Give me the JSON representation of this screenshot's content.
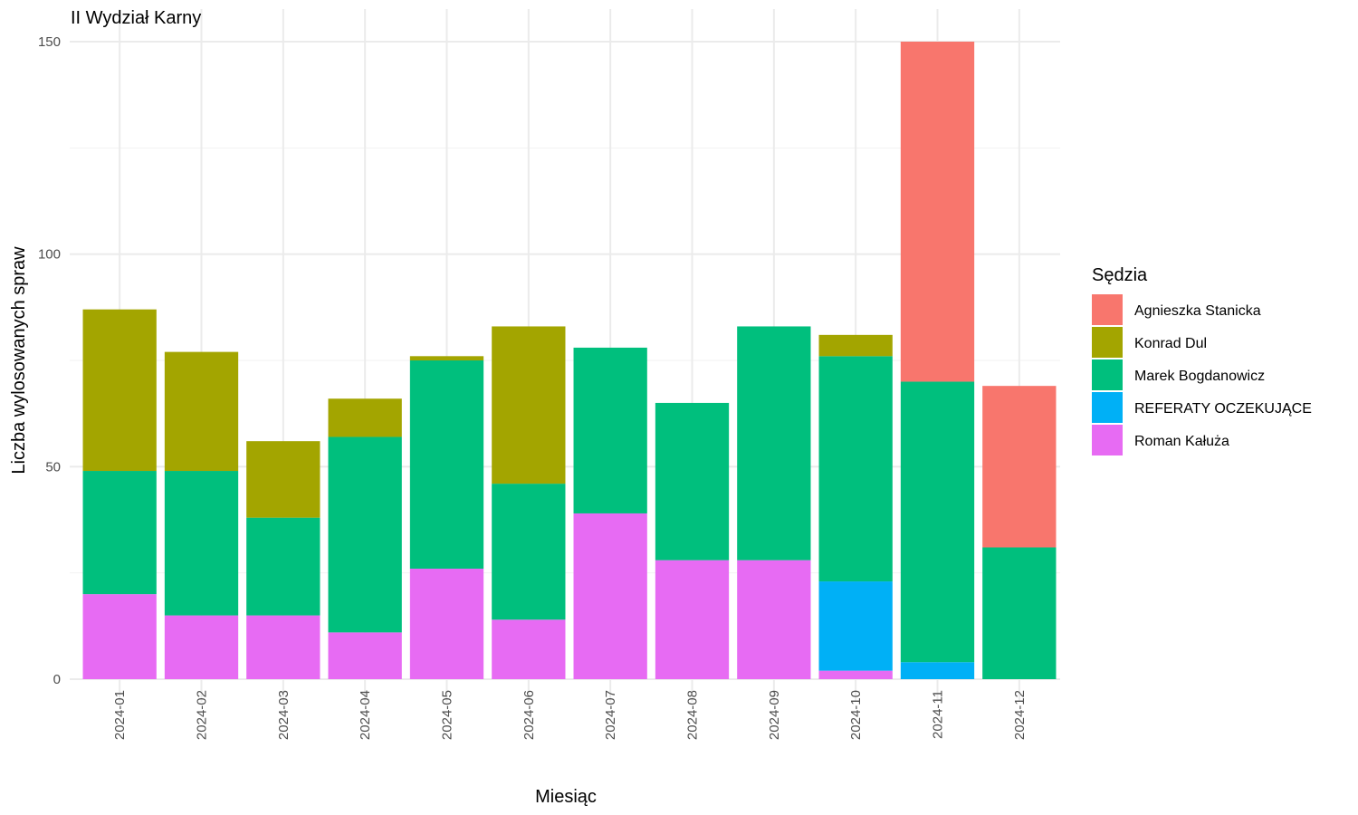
{
  "chart_data": {
    "type": "bar",
    "stacked": true,
    "title": "II Wydział Karny",
    "xlabel": "Miesiąc",
    "ylabel": "Liczba wylosowanych spraw",
    "ylim": [
      0,
      150
    ],
    "yticks": [
      0,
      50,
      100,
      150
    ],
    "grid": true,
    "legend_position": "right",
    "legend_title": "Sędzia",
    "categories": [
      "2024-01",
      "2024-02",
      "2024-03",
      "2024-04",
      "2024-05",
      "2024-06",
      "2024-07",
      "2024-08",
      "2024-09",
      "2024-10",
      "2024-11",
      "2024-12"
    ],
    "series": [
      {
        "name": "Agnieszka Stanicka",
        "color": "#F8766D",
        "values": [
          0,
          0,
          0,
          0,
          0,
          0,
          0,
          0,
          0,
          0,
          80,
          38
        ]
      },
      {
        "name": "Konrad Dul",
        "color": "#A3A500",
        "values": [
          38,
          28,
          18,
          9,
          1,
          37,
          0,
          0,
          0,
          5,
          0,
          0
        ]
      },
      {
        "name": "Marek Bogdanowicz",
        "color": "#00BF7D",
        "values": [
          29,
          34,
          23,
          46,
          49,
          32,
          39,
          37,
          55,
          53,
          66,
          31
        ]
      },
      {
        "name": "REFERATY OCZEKUJĄCE",
        "color": "#00B0F6",
        "values": [
          0,
          0,
          0,
          0,
          0,
          0,
          0,
          0,
          0,
          21,
          4,
          0
        ]
      },
      {
        "name": "Roman Kałuża",
        "color": "#E76BF3",
        "values": [
          20,
          15,
          15,
          11,
          26,
          14,
          39,
          28,
          28,
          2,
          0,
          0
        ]
      }
    ],
    "stack_order_bottom_to_top": [
      "Roman Kałuża",
      "REFERATY OCZEKUJĄCE",
      "Marek Bogdanowicz",
      "Konrad Dul",
      "Agnieszka Stanicka"
    ]
  }
}
